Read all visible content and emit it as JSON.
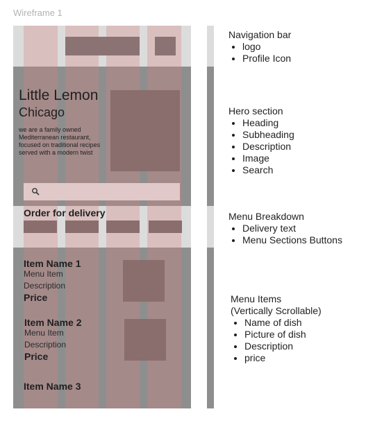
{
  "canvas": {
    "frame_title": "Wireframe 1"
  },
  "hero": {
    "heading": "Little Lemon",
    "subheading": "Chicago",
    "description": "we are a family owned Mediterranean restaurant, focused on traditional recipes served with a modern twist"
  },
  "menu": {
    "delivery_text": "Order for delivery"
  },
  "items": [
    {
      "name": "Item Name 1",
      "line1": "Menu Item",
      "line2": "Description",
      "price": "Price"
    },
    {
      "name": "Item Name 2",
      "line1": "Menu Item",
      "line2": "Description",
      "price": "Price"
    },
    {
      "name": "Item Name 3"
    }
  ],
  "annotations": {
    "nav": {
      "title": "Navigation bar",
      "bullets": [
        "logo",
        "Profile Icon"
      ]
    },
    "hero": {
      "title": "Hero section",
      "bullets": [
        "Heading",
        "Subheading",
        "Description",
        "Image",
        "Search"
      ]
    },
    "menu": {
      "title": "Menu Breakdown",
      "bullets": [
        "Delivery text",
        "Menu Sections Buttons"
      ]
    },
    "items": {
      "title": "Menu Items",
      "subtitle": "(Vertically Scrollable)",
      "bullets": [
        "Name of dish",
        "Picture of dish",
        "Description",
        "price"
      ]
    }
  },
  "icons": {
    "search": "search-icon"
  },
  "colors": {
    "grid_column": "#d68282",
    "block": "#8a6d6d",
    "light_band": "#dcdcdc",
    "dark_band": "#8e8e8e"
  }
}
